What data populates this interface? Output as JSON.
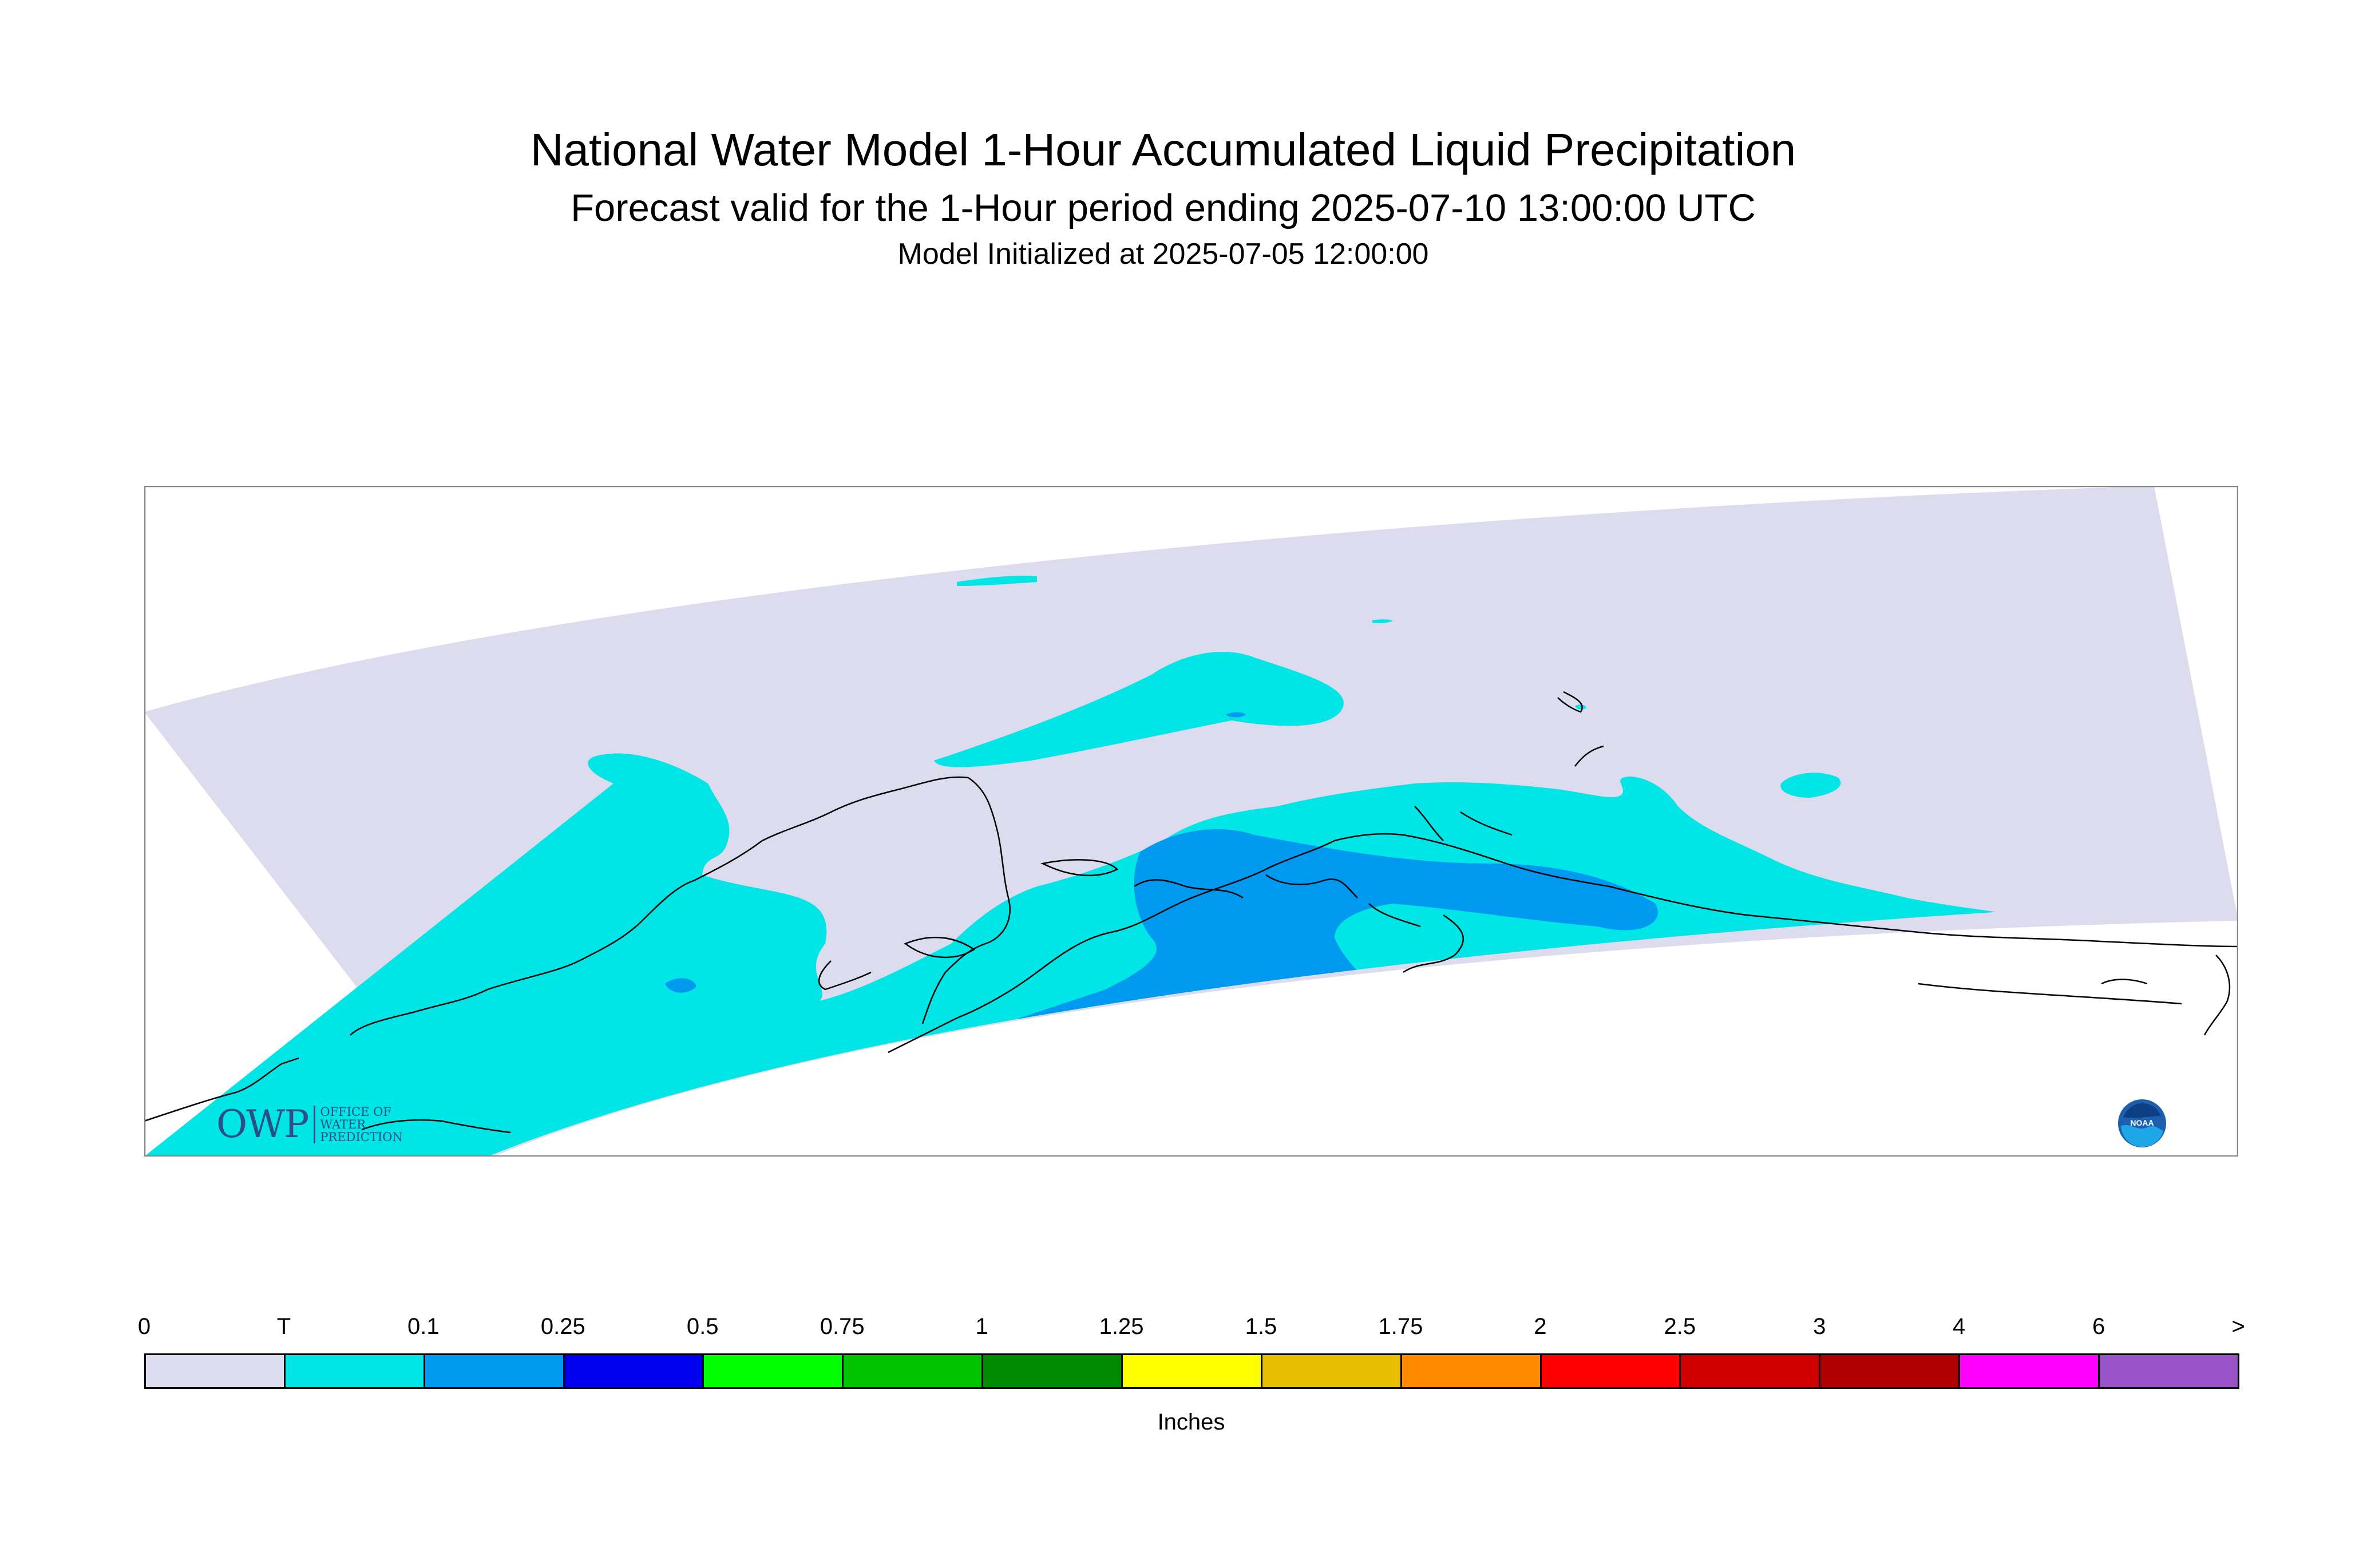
{
  "title": "National Water Model 1-Hour Accumulated Liquid Precipitation",
  "subtitle": "Forecast valid for the 1-Hour period ending 2025-07-10 13:00:00 UTC",
  "init_line": "Model Initialized at 2025-07-05 12:00:00",
  "legend": {
    "labels": [
      "0",
      "T",
      "0.1",
      "0.25",
      "0.5",
      "0.75",
      "1",
      "1.25",
      "1.5",
      "1.75",
      "2",
      "2.5",
      "3",
      "4",
      "6",
      ">"
    ],
    "colors": [
      "#dcdcee",
      "#00e5e5",
      "#0099f0",
      "#0000ee",
      "#00ff00",
      "#00c400",
      "#008a00",
      "#ffff00",
      "#e6bd00",
      "#ff8a00",
      "#ff0000",
      "#d10000",
      "#b00000",
      "#ff00ff",
      "#9a52c8"
    ],
    "units": "Inches"
  },
  "logos": {
    "owp_letters": "OWP",
    "owp_lines": [
      "OFFICE OF",
      "WATER",
      "PREDICTION"
    ],
    "noaa_text": "NOAA"
  },
  "map_colors": {
    "domain": "#dcdcee",
    "trace": "#00e5e5",
    "light": "#0099f0",
    "coast": "#000000",
    "frame": "#888888"
  }
}
